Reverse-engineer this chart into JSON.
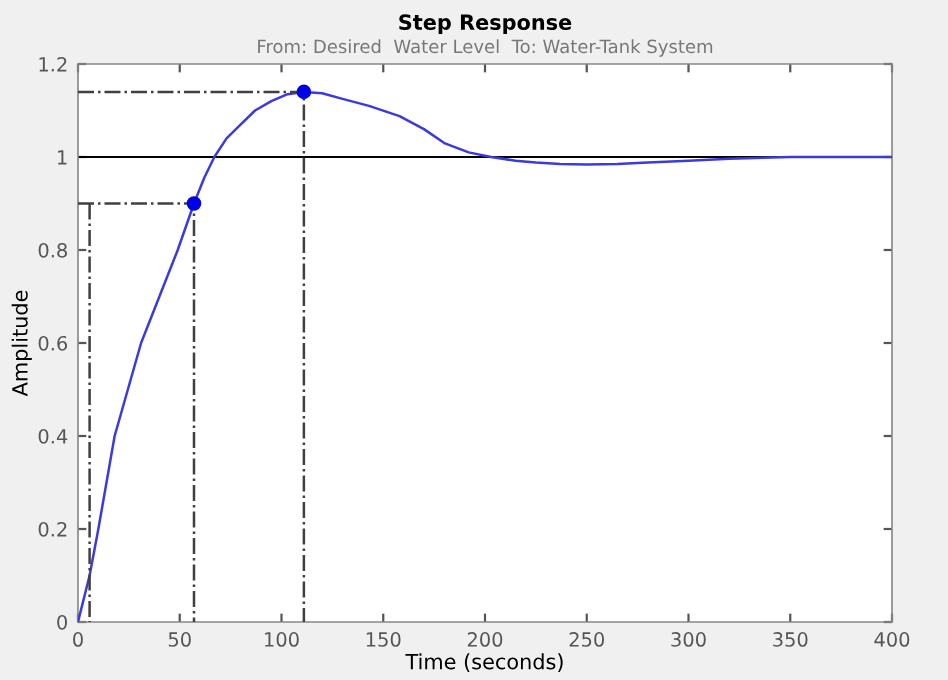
{
  "chart_data": {
    "type": "line",
    "title": "Step Response",
    "subtitle": "From: Desired  Water Level  To: Water-Tank System",
    "xlabel": "Time (seconds)",
    "ylabel": "Amplitude",
    "series": [
      {
        "color": "#3b3bdb",
        "line_style": "solid",
        "x": [
          0,
          5.7,
          10,
          18,
          31,
          40,
          49,
          57,
          62,
          67,
          73,
          80,
          87,
          95,
          103,
          111,
          120,
          130,
          143,
          158,
          170,
          180,
          192,
          203,
          215,
          225,
          237,
          250,
          265,
          280,
          300,
          320,
          350,
          400
        ],
        "values": [
          0,
          0.1,
          0.2,
          0.4,
          0.6,
          0.7,
          0.8,
          0.9,
          0.955,
          1.0,
          1.04,
          1.07,
          1.1,
          1.12,
          1.135,
          1.14,
          1.137,
          1.125,
          1.11,
          1.088,
          1.06,
          1.03,
          1.01,
          1.0,
          0.992,
          0.988,
          0.985,
          0.984,
          0.985,
          0.988,
          0.992,
          0.996,
          1.0,
          1.0
        ]
      },
      {
        "color": "#404040",
        "line_style": "dashdot",
        "x": [
          0,
          57,
          57
        ],
        "values": [
          0.9,
          0.9,
          0
        ]
      },
      {
        "color": "#404040",
        "line_style": "dashdot",
        "x": [
          5.7,
          5.7
        ],
        "values": [
          0.9,
          0
        ]
      },
      {
        "color": "#404040",
        "line_style": "dashdot",
        "x": [
          0,
          111,
          111
        ],
        "values": [
          1.14,
          1.14,
          0
        ]
      },
      {
        "type": "scatter",
        "color": "#0000e6",
        "marker": "circle",
        "x": [
          57,
          111
        ],
        "values": [
          0.9,
          1.14
        ]
      }
    ],
    "ref_lines": [
      {
        "axis": "y",
        "value": 1,
        "color": "#000000",
        "line_style": "solid"
      }
    ],
    "xlim": [
      0,
      400
    ],
    "xticks": [
      0,
      50,
      100,
      150,
      200,
      250,
      300,
      350,
      400
    ],
    "ylim": [
      0,
      1.2
    ],
    "yticks": [
      0,
      0.2,
      0.4,
      0.6,
      0.8,
      1,
      1.2
    ],
    "grid": false,
    "legend": false
  }
}
